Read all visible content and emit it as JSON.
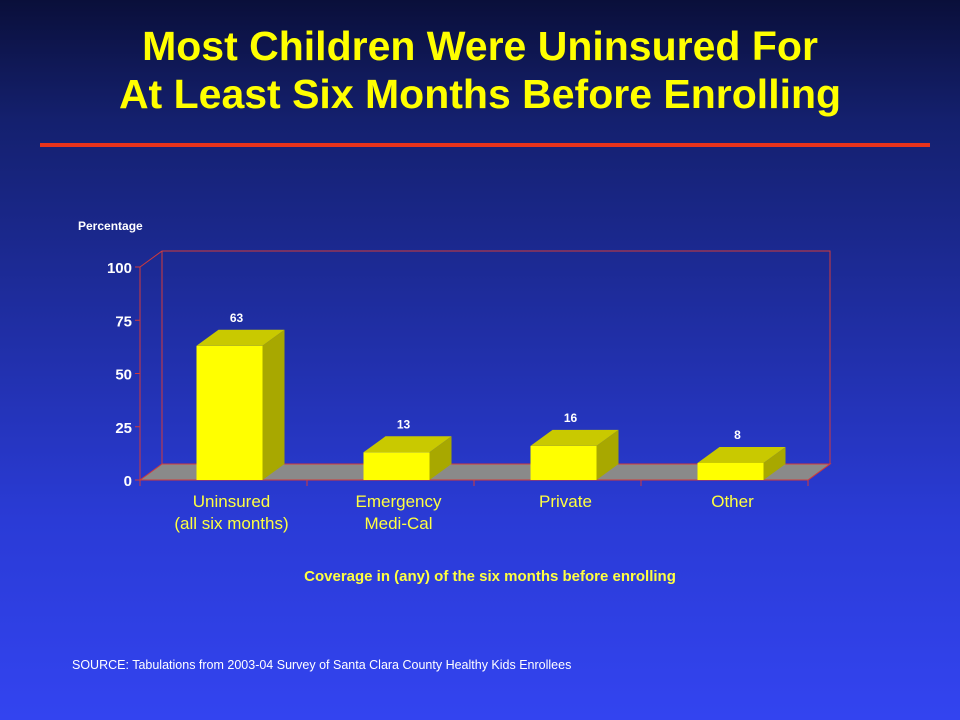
{
  "slide": {
    "title_line1": "Most Children Were Uninsured For",
    "title_line2": "At Least Six Months Before Enrolling",
    "source": "SOURCE: Tabulations from 2003-04 Survey of Santa Clara County Healthy Kids Enrollees"
  },
  "chart_data": {
    "type": "bar",
    "title": "",
    "ylabel": "Percentage",
    "xlabel": "Coverage in (any) of the six months before enrolling",
    "categories": [
      [
        "Uninsured",
        "(all six months)"
      ],
      [
        "Emergency",
        "Medi-Cal"
      ],
      [
        "Private"
      ],
      [
        "Other"
      ]
    ],
    "values": [
      63,
      13,
      16,
      8
    ],
    "data_labels": [
      "63",
      "13",
      "16",
      "8"
    ],
    "yticks": [
      0,
      25,
      50,
      75,
      100
    ],
    "ylim": [
      0,
      100
    ],
    "grid": false,
    "legend": "none",
    "colors": {
      "bar_front": "#ffff00",
      "bar_side": "#a8a800",
      "bar_top": "#c9c900",
      "floor": "#8a8a8a",
      "frame": "#d23a3a",
      "text": "#ffffff",
      "category_text": "#ffff40"
    }
  }
}
